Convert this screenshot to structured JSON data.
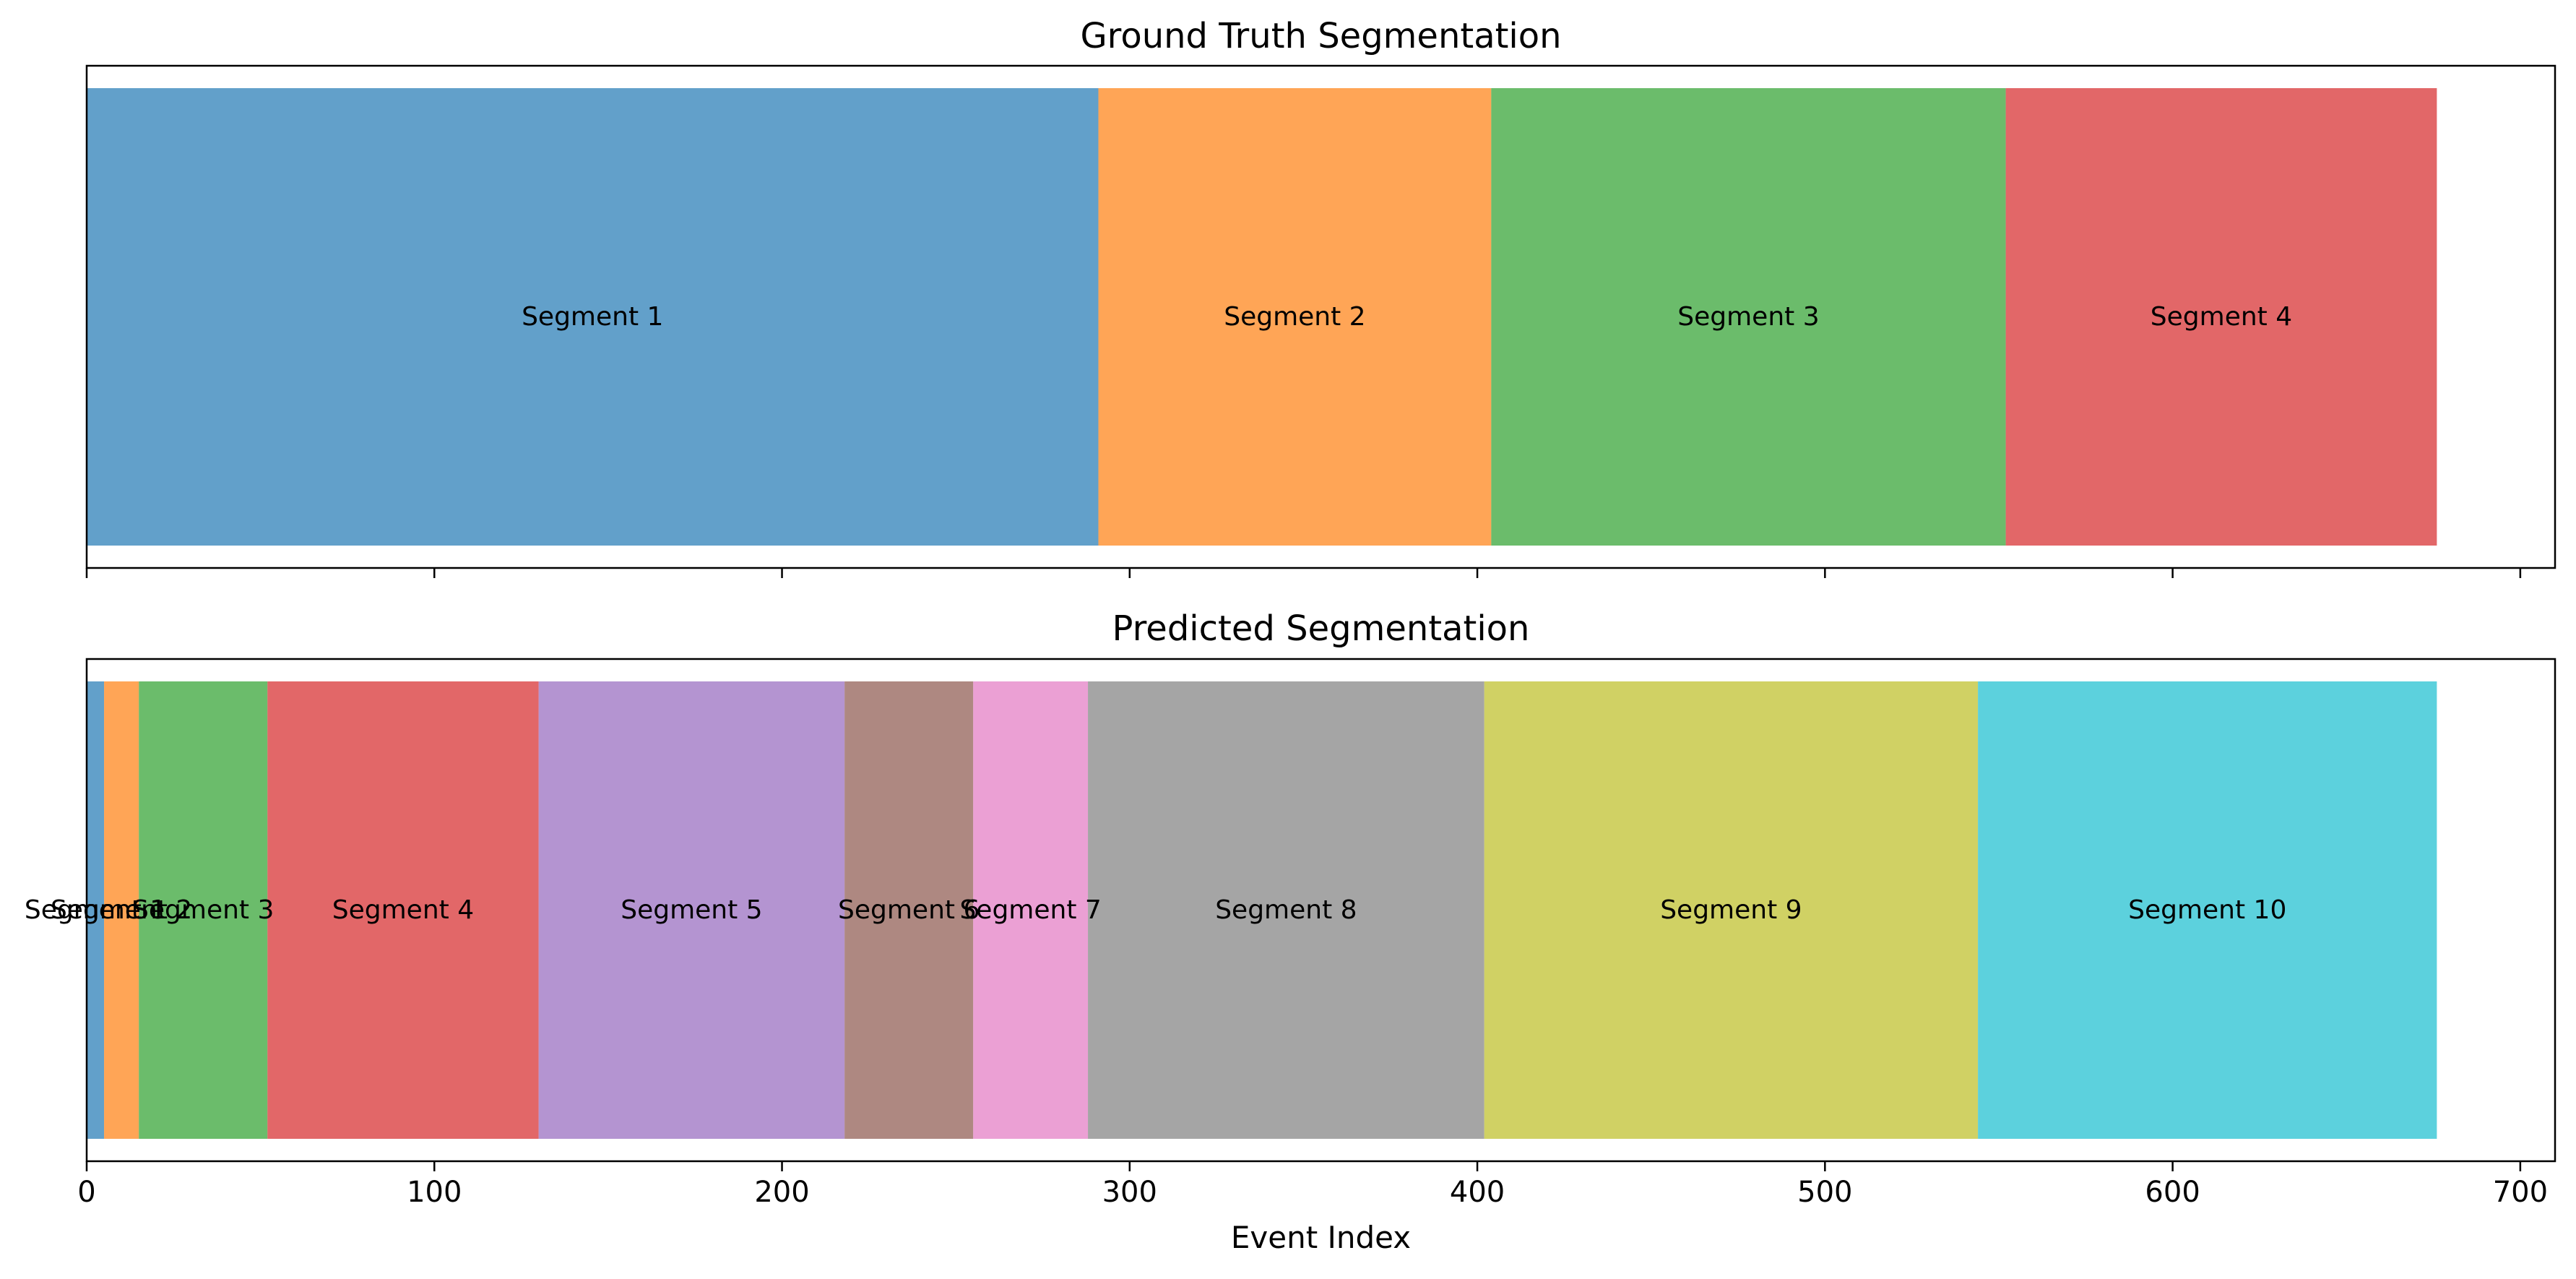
{
  "chart_data": [
    {
      "type": "bar",
      "orientation": "horizontal-stacked",
      "title": "Ground Truth Segmentation",
      "xlim": [
        0,
        710
      ],
      "x_ticks": [
        0,
        100,
        200,
        300,
        400,
        500,
        600,
        700
      ],
      "show_tick_labels": false,
      "segments": [
        {
          "label": "Segment 1",
          "start": 0,
          "end": 291,
          "color": "#1f77b4"
        },
        {
          "label": "Segment 2",
          "start": 291,
          "end": 404,
          "color": "#ff7f0e"
        },
        {
          "label": "Segment 3",
          "start": 404,
          "end": 552,
          "color": "#2ca02c"
        },
        {
          "label": "Segment 4",
          "start": 552,
          "end": 676,
          "color": "#d62728"
        }
      ]
    },
    {
      "type": "bar",
      "orientation": "horizontal-stacked",
      "title": "Predicted Segmentation",
      "xlabel": "Event Index",
      "xlim": [
        0,
        710
      ],
      "x_ticks": [
        0,
        100,
        200,
        300,
        400,
        500,
        600,
        700
      ],
      "x_tick_labels": [
        "0",
        "100",
        "200",
        "300",
        "400",
        "500",
        "600",
        "700"
      ],
      "show_tick_labels": true,
      "segments": [
        {
          "label": "Segment 1",
          "start": 0,
          "end": 5,
          "color": "#1f77b4"
        },
        {
          "label": "Segment 2",
          "start": 5,
          "end": 15,
          "color": "#ff7f0e"
        },
        {
          "label": "Segment 3",
          "start": 15,
          "end": 52,
          "color": "#2ca02c"
        },
        {
          "label": "Segment 4",
          "start": 52,
          "end": 130,
          "color": "#d62728"
        },
        {
          "label": "Segment 5",
          "start": 130,
          "end": 218,
          "color": "#9467bd"
        },
        {
          "label": "Segment 6",
          "start": 218,
          "end": 255,
          "color": "#8c564b"
        },
        {
          "label": "Segment 7",
          "start": 255,
          "end": 288,
          "color": "#e377c2"
        },
        {
          "label": "Segment 8",
          "start": 288,
          "end": 402,
          "color": "#7f7f7f"
        },
        {
          "label": "Segment 9",
          "start": 402,
          "end": 544,
          "color": "#bcbd22"
        },
        {
          "label": "Segment 10",
          "start": 544,
          "end": 676,
          "color": "#17becf"
        }
      ]
    }
  ],
  "style": {
    "bar_alpha": 0.7
  }
}
